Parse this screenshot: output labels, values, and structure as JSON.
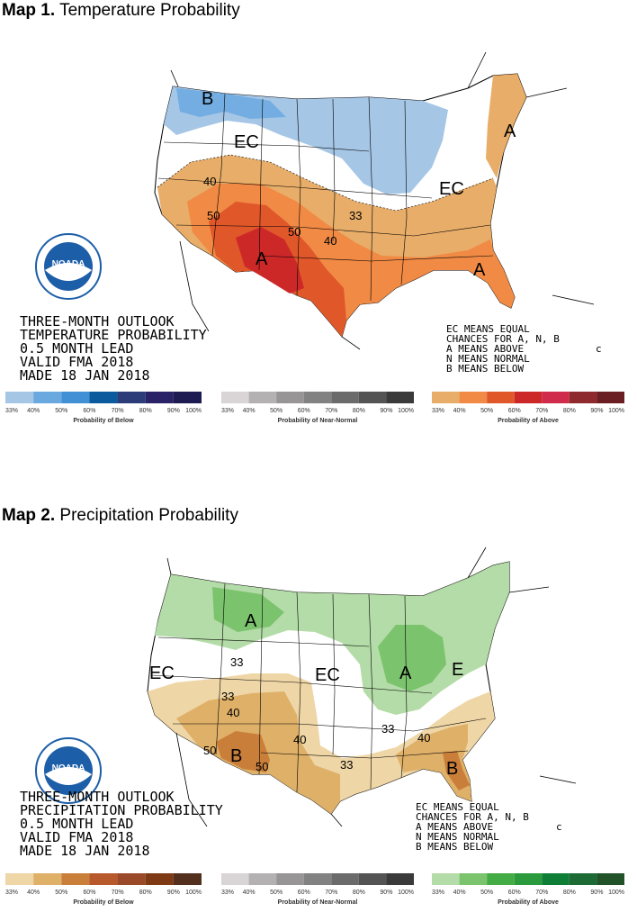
{
  "maps": [
    {
      "heading": "Map 1.",
      "title": "Temperature Probability",
      "agency_logo_text": "NOADA",
      "caption": [
        "THREE-MONTH OUTLOOK",
        "TEMPERATURE PROBABILITY",
        "0.5 MONTH LEAD",
        "VALID FMA 2018",
        "MADE 18 JAN 2018"
      ],
      "key": [
        "EC MEANS EQUAL",
        "CHANCES FOR A, N, B",
        "A MEANS ABOVE",
        "N MEANS NORMAL",
        "B MEANS BELOW"
      ],
      "key_mark": "c",
      "region_labels": [
        "B",
        "EC",
        "EC",
        "A",
        "A",
        "A"
      ],
      "contour_labels": [
        "40",
        "50",
        "50",
        "40",
        "33"
      ],
      "legend": [
        {
          "label": "Probability of Below",
          "ticks": [
            "33%",
            "40%",
            "50%",
            "60%",
            "70%",
            "80%",
            "90%",
            "100%"
          ],
          "colors": [
            "#a6c6e6",
            "#6aa8e0",
            "#4190d6",
            "#0b5a9e",
            "#2b3c78",
            "#2a2266",
            "#1e1b52"
          ]
        },
        {
          "label": "Probability of Near-Normal",
          "ticks": [
            "33%",
            "40%",
            "50%",
            "60%",
            "70%",
            "80%",
            "90%",
            "100%"
          ],
          "colors": [
            "#d9d4d6",
            "#b4b1b2",
            "#979595",
            "#828282",
            "#6b6b6b",
            "#545454",
            "#3a3a3a"
          ]
        },
        {
          "label": "Probability of Above",
          "ticks": [
            "33%",
            "40%",
            "50%",
            "60%",
            "70%",
            "80%",
            "90%",
            "100%"
          ],
          "colors": [
            "#e8ad68",
            "#f08a44",
            "#e0572a",
            "#cc2828",
            "#d02b4a",
            "#8e2a2e",
            "#6b1e22"
          ]
        }
      ]
    },
    {
      "heading": "Map 2.",
      "title": "Precipitation Probability",
      "agency_logo_text": "NOADA",
      "caption": [
        "THREE-MONTH OUTLOOK",
        "PRECIPITATION PROBABILITY",
        "0.5 MONTH LEAD",
        "VALID FMA 2018",
        "MADE 18 JAN 2018"
      ],
      "key": [
        "EC MEANS EQUAL",
        "CHANCES FOR A, N, B",
        "A MEANS ABOVE",
        "N MEANS NORMAL",
        "B MEANS BELOW"
      ],
      "key_mark": "c",
      "region_labels": [
        "A",
        "EC",
        "EC",
        "A",
        "E",
        "B",
        "B"
      ],
      "contour_labels": [
        "33",
        "33",
        "40",
        "50",
        "50",
        "40",
        "33",
        "33",
        "40"
      ],
      "legend": [
        {
          "label": "Probability of Below",
          "ticks": [
            "33%",
            "40%",
            "50%",
            "60%",
            "70%",
            "80%",
            "90%",
            "100%"
          ],
          "colors": [
            "#efd6a6",
            "#dfb068",
            "#c97e3a",
            "#b8592c",
            "#9a4a28",
            "#7e3a14",
            "#53301e"
          ]
        },
        {
          "label": "Probability of Near-Normal",
          "ticks": [
            "33%",
            "40%",
            "50%",
            "60%",
            "70%",
            "80%",
            "90%",
            "100%"
          ],
          "colors": [
            "#d9d4d6",
            "#b4b1b2",
            "#979595",
            "#828282",
            "#6b6b6b",
            "#545454",
            "#3a3a3a"
          ]
        },
        {
          "label": "Probability of Above",
          "ticks": [
            "33%",
            "40%",
            "50%",
            "60%",
            "70%",
            "80%",
            "90%",
            "100%"
          ],
          "colors": [
            "#b4dca8",
            "#7cc36e",
            "#44ac44",
            "#2a9a3c",
            "#0e7e36",
            "#1e6a34",
            "#225228"
          ]
        }
      ]
    }
  ]
}
